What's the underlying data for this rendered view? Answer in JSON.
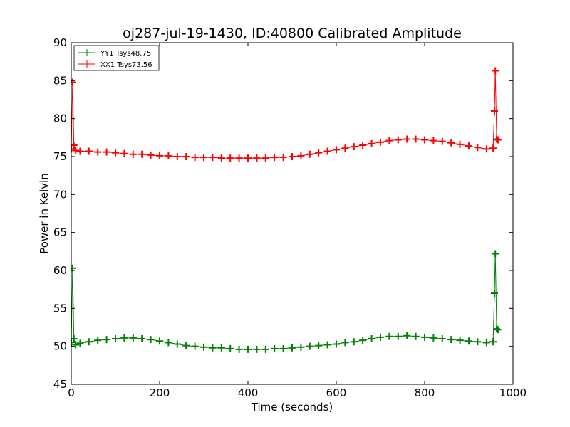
{
  "chart_data": {
    "type": "line",
    "title": "oj287-jul-19-1430, ID:40800 Calibrated Amplitude",
    "xlabel": "Time (seconds)",
    "ylabel": "Power in Kelvin",
    "xlim": [
      0,
      1000
    ],
    "ylim": [
      45,
      90
    ],
    "xticks": [
      0,
      200,
      400,
      600,
      800,
      1000
    ],
    "yticks": [
      45,
      50,
      55,
      60,
      65,
      70,
      75,
      80,
      85,
      90
    ],
    "grid": false,
    "legend_position": "top-left",
    "marker": "+",
    "series": [
      {
        "name": "YY1 Tsys48.75",
        "color": "#008000",
        "x": [
          0,
          3,
          6,
          10,
          20,
          40,
          60,
          80,
          100,
          120,
          140,
          160,
          180,
          200,
          220,
          240,
          260,
          280,
          300,
          320,
          340,
          360,
          380,
          400,
          420,
          440,
          460,
          480,
          500,
          520,
          540,
          560,
          580,
          600,
          620,
          640,
          660,
          680,
          700,
          720,
          740,
          760,
          780,
          800,
          820,
          840,
          860,
          880,
          900,
          920,
          940,
          955,
          958,
          960,
          963,
          966
        ],
        "y": [
          50.5,
          60.3,
          51.0,
          50.2,
          50.4,
          50.6,
          50.8,
          50.9,
          51.0,
          51.1,
          51.1,
          51.0,
          50.9,
          50.7,
          50.5,
          50.3,
          50.1,
          50.0,
          49.9,
          49.8,
          49.8,
          49.7,
          49.6,
          49.6,
          49.6,
          49.6,
          49.7,
          49.7,
          49.8,
          49.9,
          50.0,
          50.1,
          50.2,
          50.3,
          50.5,
          50.6,
          50.8,
          51.0,
          51.2,
          51.3,
          51.3,
          51.4,
          51.3,
          51.2,
          51.1,
          51.0,
          50.9,
          50.8,
          50.7,
          50.6,
          50.5,
          50.6,
          57.0,
          62.2,
          52.3,
          52.2
        ]
      },
      {
        "name": "XX1 Tsys73.56",
        "color": "#ff0000",
        "x": [
          0,
          3,
          6,
          10,
          20,
          40,
          60,
          80,
          100,
          120,
          140,
          160,
          180,
          200,
          220,
          240,
          260,
          280,
          300,
          320,
          340,
          360,
          380,
          400,
          420,
          440,
          460,
          480,
          500,
          520,
          540,
          560,
          580,
          600,
          620,
          640,
          660,
          680,
          700,
          720,
          740,
          760,
          780,
          800,
          820,
          840,
          860,
          880,
          900,
          920,
          940,
          955,
          958,
          960,
          963,
          966
        ],
        "y": [
          76.0,
          84.8,
          76.5,
          75.8,
          75.7,
          75.7,
          75.6,
          75.6,
          75.5,
          75.4,
          75.3,
          75.3,
          75.2,
          75.1,
          75.1,
          75.0,
          75.0,
          74.9,
          74.9,
          74.9,
          74.8,
          74.8,
          74.8,
          74.8,
          74.8,
          74.8,
          74.9,
          74.9,
          75.0,
          75.1,
          75.3,
          75.5,
          75.7,
          75.9,
          76.1,
          76.3,
          76.5,
          76.7,
          76.9,
          77.1,
          77.2,
          77.3,
          77.3,
          77.2,
          77.1,
          77.0,
          76.8,
          76.6,
          76.4,
          76.2,
          76.0,
          76.1,
          81.0,
          86.3,
          77.3,
          77.2
        ]
      }
    ]
  }
}
